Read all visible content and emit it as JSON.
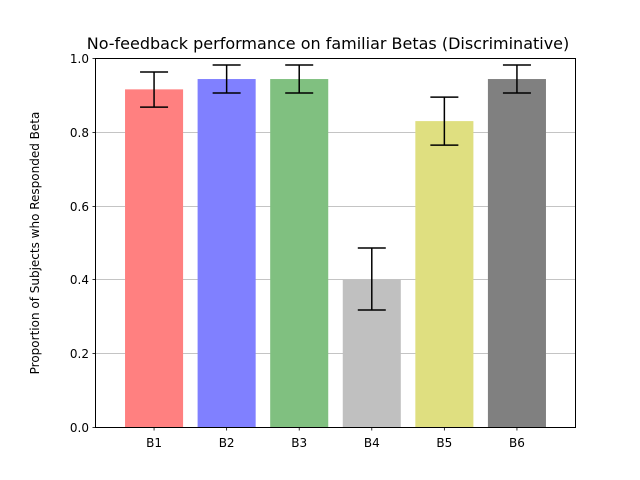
{
  "chart_data": {
    "type": "bar",
    "title": "No-feedback performance on familiar Betas (Discriminative)",
    "xlabel": "",
    "ylabel": "Proportion of Subjects who Responded Beta",
    "categories": [
      "B1",
      "B2",
      "B3",
      "B4",
      "B5",
      "B6"
    ],
    "values": [
      0.915,
      0.943,
      0.943,
      0.4,
      0.829,
      0.943
    ],
    "error_low": [
      0.867,
      0.905,
      0.905,
      0.317,
      0.764,
      0.905
    ],
    "error_high": [
      0.962,
      0.981,
      0.981,
      0.485,
      0.894,
      0.981
    ],
    "bar_colors": [
      "#ff8080",
      "#8080ff",
      "#80c080",
      "#c0c0c0",
      "#dfdf80",
      "#808080"
    ],
    "ylim": [
      0.0,
      1.0
    ],
    "yticks": [
      "0.0",
      "0.2",
      "0.4",
      "0.6",
      "0.8",
      "1.0"
    ],
    "grid": "horizontal",
    "legend": "none"
  }
}
